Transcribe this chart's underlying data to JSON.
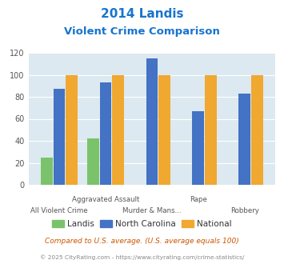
{
  "title_line1": "2014 Landis",
  "title_line2": "Violent Crime Comparison",
  "title_color": "#1874cd",
  "categories": [
    "All Violent Crime",
    "Aggravated Assault",
    "Murder & Mans...",
    "Rape",
    "Robbery"
  ],
  "x_labels_top": [
    "",
    "Aggravated Assault",
    "",
    "Rape",
    ""
  ],
  "x_labels_bot": [
    "All Violent Crime",
    "",
    "Murder & Mans...",
    "",
    "Robbery"
  ],
  "landis": [
    25,
    42,
    0,
    0,
    0
  ],
  "north_carolina": [
    87,
    93,
    115,
    67,
    83
  ],
  "national": [
    100,
    100,
    100,
    100,
    100
  ],
  "landis_color": "#7ac36a",
  "nc_color": "#4472c4",
  "national_color": "#f0a830",
  "bg_color": "#dce9f0",
  "ylim": [
    0,
    120
  ],
  "yticks": [
    0,
    20,
    40,
    60,
    80,
    100,
    120
  ],
  "legend_labels": [
    "Landis",
    "North Carolina",
    "National"
  ],
  "footnote1": "Compared to U.S. average. (U.S. average equals 100)",
  "footnote2": "© 2025 CityRating.com - https://www.cityrating.com/crime-statistics/",
  "footnote1_color": "#cc5500",
  "footnote2_color": "#888888"
}
